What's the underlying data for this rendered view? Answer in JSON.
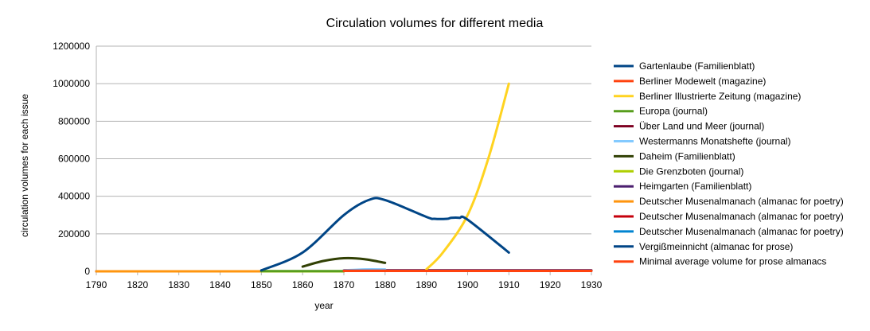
{
  "chart_data": {
    "type": "line",
    "title": "Circulation volumes for different media",
    "xlabel": "year",
    "ylabel": "circulation volumes for each issue",
    "xlim": [
      1790,
      1930
    ],
    "ylim": [
      0,
      1200000
    ],
    "xticks": [
      1790,
      1820,
      1830,
      1840,
      1850,
      1860,
      1870,
      1880,
      1890,
      1900,
      1910,
      1920,
      1930
    ],
    "yticks": [
      0,
      200000,
      400000,
      600000,
      800000,
      1000000,
      1200000
    ],
    "xtick_labels": [
      "1790",
      "1820",
      "1830",
      "1840",
      "1850",
      "1860",
      "1870",
      "1880",
      "1890",
      "1900",
      "1910",
      "1920",
      "1930"
    ],
    "ytick_labels": [
      "0",
      "200000",
      "400000",
      "600000",
      "800000",
      "1000000",
      "1200000"
    ],
    "grid": "horizontal",
    "legend_position": "right",
    "series": [
      {
        "name": "Gartenlaube (Familienblatt)",
        "color": "#004586",
        "points": [
          [
            1850,
            5000
          ],
          [
            1860,
            100000
          ],
          [
            1870,
            300000
          ],
          [
            1876,
            380000
          ],
          [
            1880,
            380000
          ],
          [
            1890,
            290000
          ],
          [
            1892,
            280000
          ],
          [
            1895,
            280000
          ],
          [
            1896,
            285000
          ],
          [
            1898,
            285000
          ],
          [
            1900,
            275000
          ],
          [
            1910,
            100000
          ]
        ]
      },
      {
        "name": "Berliner Modewelt (magazine)",
        "color": "#ff420e",
        "points": [
          [
            1870,
            2000
          ],
          [
            1930,
            2000
          ]
        ]
      },
      {
        "name": "Berliner Illustrierte Zeitung (magazine)",
        "color": "#ffd320",
        "points": [
          [
            1890,
            10000
          ],
          [
            1894,
            100000
          ],
          [
            1900,
            300000
          ],
          [
            1905,
            600000
          ],
          [
            1910,
            1000000
          ]
        ]
      },
      {
        "name": "Europa (journal)",
        "color": "#579d1c",
        "points": [
          [
            1850,
            1000
          ],
          [
            1870,
            1000
          ]
        ]
      },
      {
        "name": "Über Land und Meer (journal)",
        "color": "#7e0021",
        "points": [
          [
            1870,
            3000
          ],
          [
            1930,
            3000
          ]
        ]
      },
      {
        "name": "Westermanns Monatshefte (journal)",
        "color": "#83caff",
        "points": [
          [
            1870,
            5000
          ],
          [
            1875,
            10000
          ],
          [
            1880,
            10000
          ]
        ]
      },
      {
        "name": "Daheim (Familienblatt)",
        "color": "#314004",
        "points": [
          [
            1860,
            25000
          ],
          [
            1865,
            55000
          ],
          [
            1870,
            70000
          ],
          [
            1875,
            65000
          ],
          [
            1880,
            45000
          ]
        ]
      },
      {
        "name": "Die Grenzboten (journal)",
        "color": "#aecf00",
        "points": [
          [
            1850,
            0
          ],
          [
            1870,
            0
          ]
        ]
      },
      {
        "name": "Heimgarten (Familienblatt)",
        "color": "#4b1f6f",
        "points": [
          [
            1870,
            5000
          ],
          [
            1930,
            5000
          ]
        ]
      },
      {
        "name": "Deutscher Musenalmanach (almanac for poetry)",
        "color": "#ff950e",
        "points": [
          [
            1790,
            0
          ],
          [
            1850,
            0
          ]
        ]
      },
      {
        "name": "Deutscher Musenalmanach (almanac for poetry)",
        "color": "#c5000b",
        "points": [
          [
            1790,
            0
          ],
          [
            1850,
            0
          ]
        ]
      },
      {
        "name": "Deutscher Musenalmanach (almanac for poetry)",
        "color": "#0084d1",
        "points": [
          [
            1790,
            0
          ],
          [
            1850,
            0
          ]
        ]
      },
      {
        "name": "Vergißmeinnicht (almanac for prose)",
        "color": "#004586",
        "points": [
          [
            1790,
            0
          ],
          [
            1850,
            0
          ]
        ]
      },
      {
        "name": "Minimal average volume for prose almanacs",
        "color": "#ff420e",
        "points": [
          [
            1790,
            0
          ],
          [
            1850,
            0
          ]
        ]
      }
    ]
  }
}
